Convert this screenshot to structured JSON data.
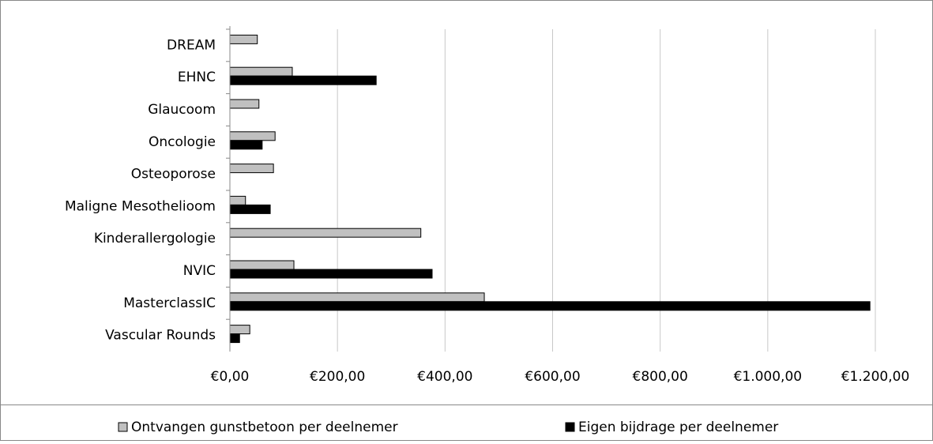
{
  "chart_data": {
    "type": "hbar",
    "categories": [
      "DREAM",
      "EHNC",
      "Glaucoom",
      "Oncologie",
      "Osteoporose",
      "Maligne Mesothelioom",
      "Kinderallergologie",
      "NVIC",
      "MasterclassIC",
      "Vascular Rounds"
    ],
    "series": [
      {
        "name": "Ontvangen gunstbetoon per deelnemer",
        "color": "#c0c0c0",
        "values": [
          51,
          116,
          54,
          84,
          81,
          29,
          355,
          119,
          473,
          37
        ]
      },
      {
        "name": "Eigen bijdrage per deelnemer",
        "color": "#000000",
        "values": [
          0,
          272,
          0,
          60,
          0,
          75,
          0,
          376,
          1190,
          18
        ]
      }
    ],
    "xlim": [
      0,
      1200
    ],
    "xticks": [
      {
        "value": 0,
        "label": "€0,00"
      },
      {
        "value": 200,
        "label": "€200,00"
      },
      {
        "value": 400,
        "label": "€400,00"
      },
      {
        "value": 600,
        "label": "€600,00"
      },
      {
        "value": 800,
        "label": "€800,00"
      },
      {
        "value": 1000,
        "label": "€1.000,00"
      },
      {
        "value": 1200,
        "label": "€1.200,00"
      }
    ],
    "grid": true,
    "legend": "bottom"
  }
}
